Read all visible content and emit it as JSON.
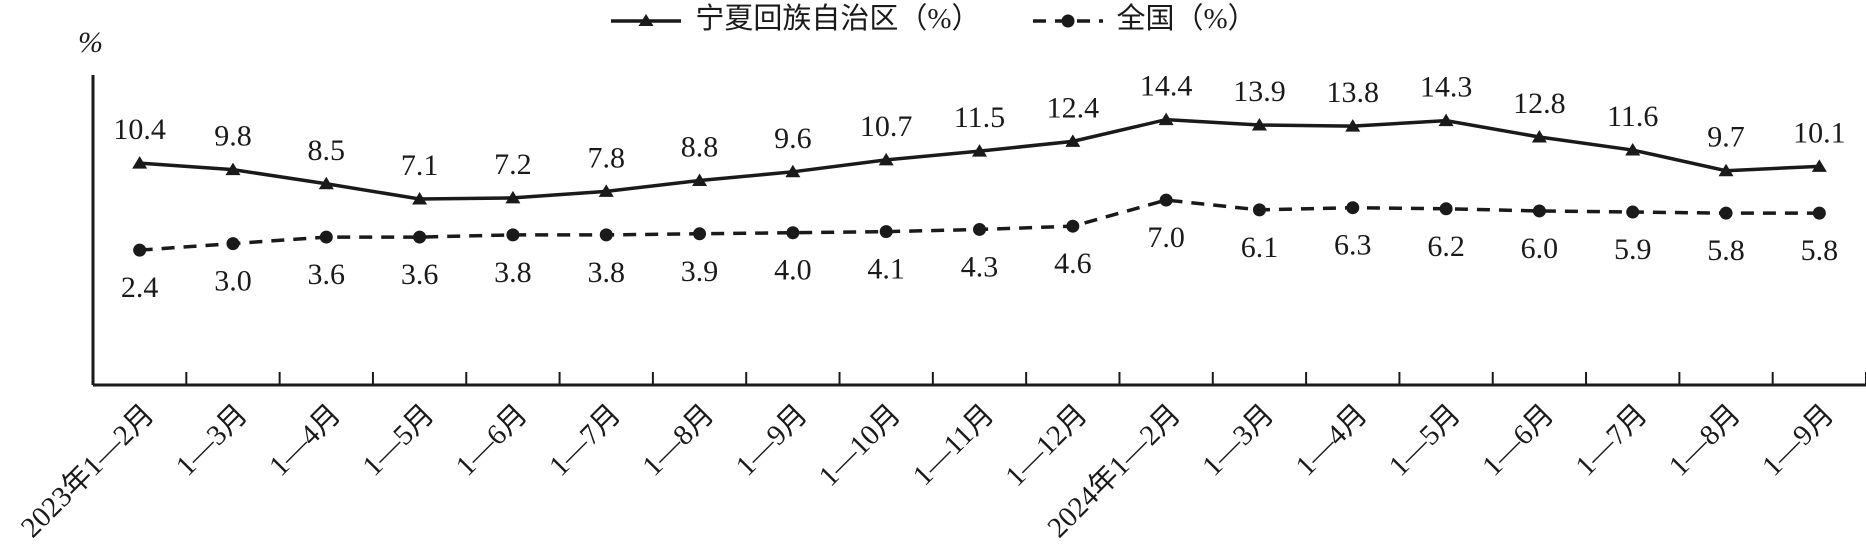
{
  "chart_data": {
    "type": "line",
    "title": "",
    "xlabel": "",
    "ylabel": "%",
    "color": "#1a1a1a",
    "grid": false,
    "legend_position": "top-center",
    "ylim": [
      -10,
      18.5
    ],
    "categories": [
      "2023年1—2月",
      "1—3月",
      "1—4月",
      "1—5月",
      "1—6月",
      "1—7月",
      "1—8月",
      "1—9月",
      "1—10月",
      "1—11月",
      "1—12月",
      "2024年1—2月",
      "1—3月",
      "1—4月",
      "1—5月",
      "1—6月",
      "1—7月",
      "1—8月",
      "1—9月"
    ],
    "series": [
      {
        "name": "宁夏回族自治区（%）",
        "line_style": "solid",
        "marker": "triangle",
        "label_position": "above",
        "values": [
          10.4,
          9.8,
          8.5,
          7.1,
          7.2,
          7.8,
          8.8,
          9.6,
          10.7,
          11.5,
          12.4,
          14.4,
          13.9,
          13.8,
          14.3,
          12.8,
          11.6,
          9.7,
          10.1
        ]
      },
      {
        "name": "全国（%）",
        "line_style": "dashed",
        "marker": "circle",
        "label_position": "below",
        "values": [
          2.4,
          3.0,
          3.6,
          3.6,
          3.8,
          3.8,
          3.9,
          4.0,
          4.1,
          4.3,
          4.6,
          7.0,
          6.1,
          6.3,
          6.2,
          6.0,
          5.9,
          5.8,
          5.8
        ]
      }
    ]
  }
}
